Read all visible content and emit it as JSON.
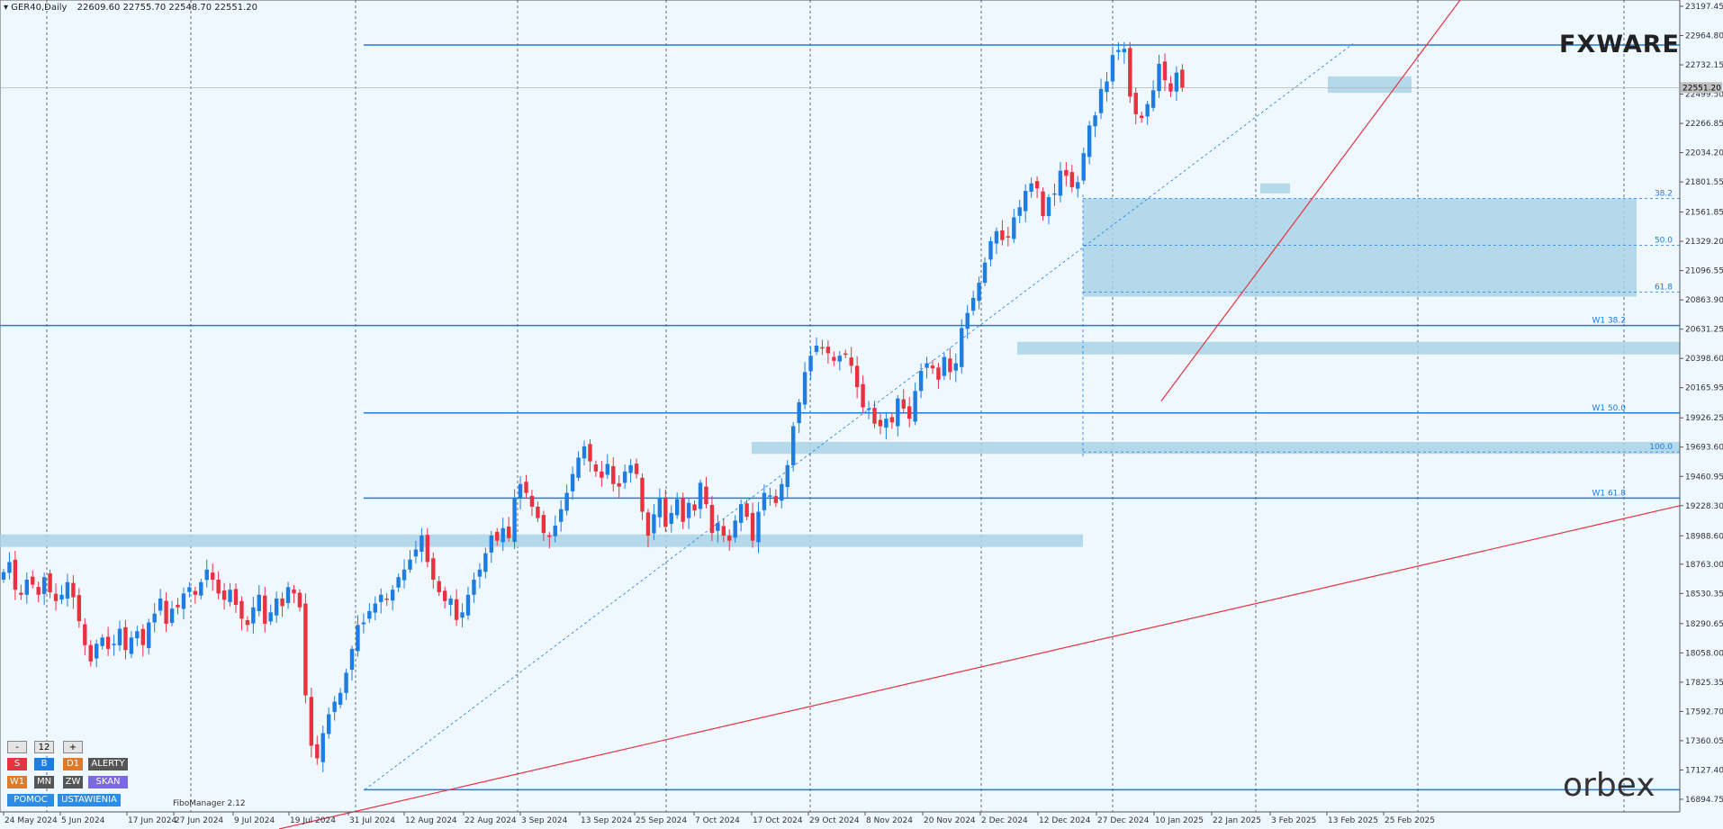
{
  "header": {
    "symbol": "GER40,Daily",
    "ohlc": "22609.60 22755.70 22548.70 22551.20"
  },
  "logos": {
    "fxware": "FXWARE",
    "orbex": "orbex"
  },
  "controls": {
    "row1": [
      "-",
      "12",
      "+"
    ],
    "row2": [
      "S",
      "B",
      "D1",
      "ALERTY"
    ],
    "row3": [
      "W1",
      "MN",
      "ZW",
      "SKAN"
    ],
    "row4": [
      "POMOC",
      "USTAWIENIA"
    ],
    "fibo_manager": "FiboManager 2.12"
  },
  "colors": {
    "background": "#eff7ff",
    "bull": "#1e7de0",
    "bear": "#e8323f",
    "zone": "#a9d4e6",
    "level_line": "#1e7de0",
    "trendline": "#e8323f"
  },
  "chart_data": {
    "type": "candlestick",
    "instrument": "GER40",
    "timeframe": "Daily",
    "ylim": [
      16894.25,
      23197.45
    ],
    "y_ticks": [
      "23197.45",
      "22964.80",
      "22732.15",
      "22499.50",
      "22266.85",
      "22034.20",
      "21801.55",
      "21561.85",
      "21329.20",
      "21096.55",
      "20863.90",
      "20631.25",
      "20398.60",
      "20165.95",
      "19926.25",
      "19693.60",
      "19460.95",
      "19228.30",
      "18988.60",
      "18763.00",
      "18530.35",
      "18290.65",
      "18058.00",
      "17825.35",
      "17592.70",
      "17360.05",
      "17127.40",
      "16894.75"
    ],
    "x_labels": [
      "24 May 2024",
      "5 Jun 2024",
      "17 Jun 2024",
      "27 Jun 2024",
      "9 Jul 2024",
      "19 Jul 2024",
      "31 Jul 2024",
      "12 Aug 2024",
      "22 Aug 2024",
      "3 Sep 2024",
      "13 Sep 2024",
      "25 Sep 2024",
      "7 Oct 2024",
      "17 Oct 2024",
      "29 Oct 2024",
      "8 Nov 2024",
      "20 Nov 2024",
      "2 Dec 2024",
      "12 Dec 2024",
      "27 Dec 2024",
      "10 Jan 2025",
      "22 Jan 2025",
      "3 Feb 2025",
      "13 Feb 2025",
      "25 Feb 2025"
    ],
    "current_price": "22551.20",
    "closes": [
      18700,
      18780,
      18560,
      18520,
      18640,
      18600,
      18520,
      18660,
      18540,
      18470,
      18520,
      18620,
      18500,
      18310,
      18120,
      17990,
      18130,
      18180,
      18090,
      18130,
      18250,
      18080,
      18180,
      18230,
      18120,
      18300,
      18370,
      18490,
      18290,
      18410,
      18420,
      18530,
      18580,
      18520,
      18620,
      18720,
      18640,
      18530,
      18480,
      18560,
      18440,
      18330,
      18280,
      18420,
      18520,
      18290,
      18380,
      18490,
      18430,
      18580,
      18530,
      18420,
      17720,
      17320,
      17220,
      17420,
      17570,
      17670,
      17740,
      17900,
      18090,
      18280,
      18300,
      18390,
      18450,
      18520,
      18480,
      18560,
      18660,
      18720,
      18800,
      18880,
      18990,
      18780,
      18640,
      18540,
      18470,
      18490,
      18320,
      18380,
      18520,
      18640,
      18720,
      18850,
      18990,
      18950,
      19050,
      18970,
      19290,
      19400,
      19330,
      19220,
      19130,
      19010,
      18980,
      19070,
      19200,
      19330,
      19480,
      19610,
      19700,
      19580,
      19500,
      19450,
      19560,
      19400,
      19380,
      19500,
      19550,
      19480,
      19180,
      18990,
      19160,
      19290,
      19060,
      19170,
      19280,
      19100,
      19250,
      19190,
      19410,
      19240,
      19010,
      19090,
      18990,
      18950,
      19110,
      19240,
      19140,
      18950,
      19180,
      19330,
      19310,
      19250,
      19400,
      19550,
      19860,
      20050,
      20290,
      20420,
      20500,
      20480,
      20440,
      20380,
      20420,
      20430,
      20340,
      20170,
      20010,
      20000,
      19880,
      19860,
      19920,
      19890,
      20080,
      20000,
      19920,
      20140,
      20300,
      20360,
      20320,
      20230,
      20410,
      20290,
      20360,
      20640,
      20760,
      20880,
      21000,
      21160,
      21330,
      21410,
      21340,
      21360,
      21520,
      21600,
      21730,
      21790,
      21750,
      21530,
      21680,
      21710,
      21890,
      21850,
      21760,
      21800,
      22030,
      22250,
      22330,
      22540,
      22600,
      22810,
      22850,
      22860,
      22480,
      22340,
      22310,
      22420,
      22530,
      22740,
      22610,
      22520,
      22670,
      22551
    ],
    "resistance_lines": [
      {
        "label": "",
        "value": 22890
      },
      {
        "label": "W1 38.2",
        "value": 20660
      },
      {
        "label": "W1 50.0",
        "value": 19965
      },
      {
        "label": "W1 61.8",
        "value": 19288
      },
      {
        "label": "",
        "value": 16970
      }
    ],
    "fib_levels": [
      {
        "label": "38.2",
        "value": 21670
      },
      {
        "label": "50.0",
        "value": 21298
      },
      {
        "label": "61.8",
        "value": 20925
      },
      {
        "label": "100.0",
        "value": 19655
      }
    ],
    "zones": [
      {
        "from": 20890,
        "to": 21670
      },
      {
        "from": 20430,
        "to": 20530
      },
      {
        "from": 19640,
        "to": 19735
      },
      {
        "from": 18900,
        "to": 19000
      },
      {
        "from": 22510,
        "to": 22640
      },
      {
        "from": 21710,
        "to": 21790
      }
    ]
  }
}
